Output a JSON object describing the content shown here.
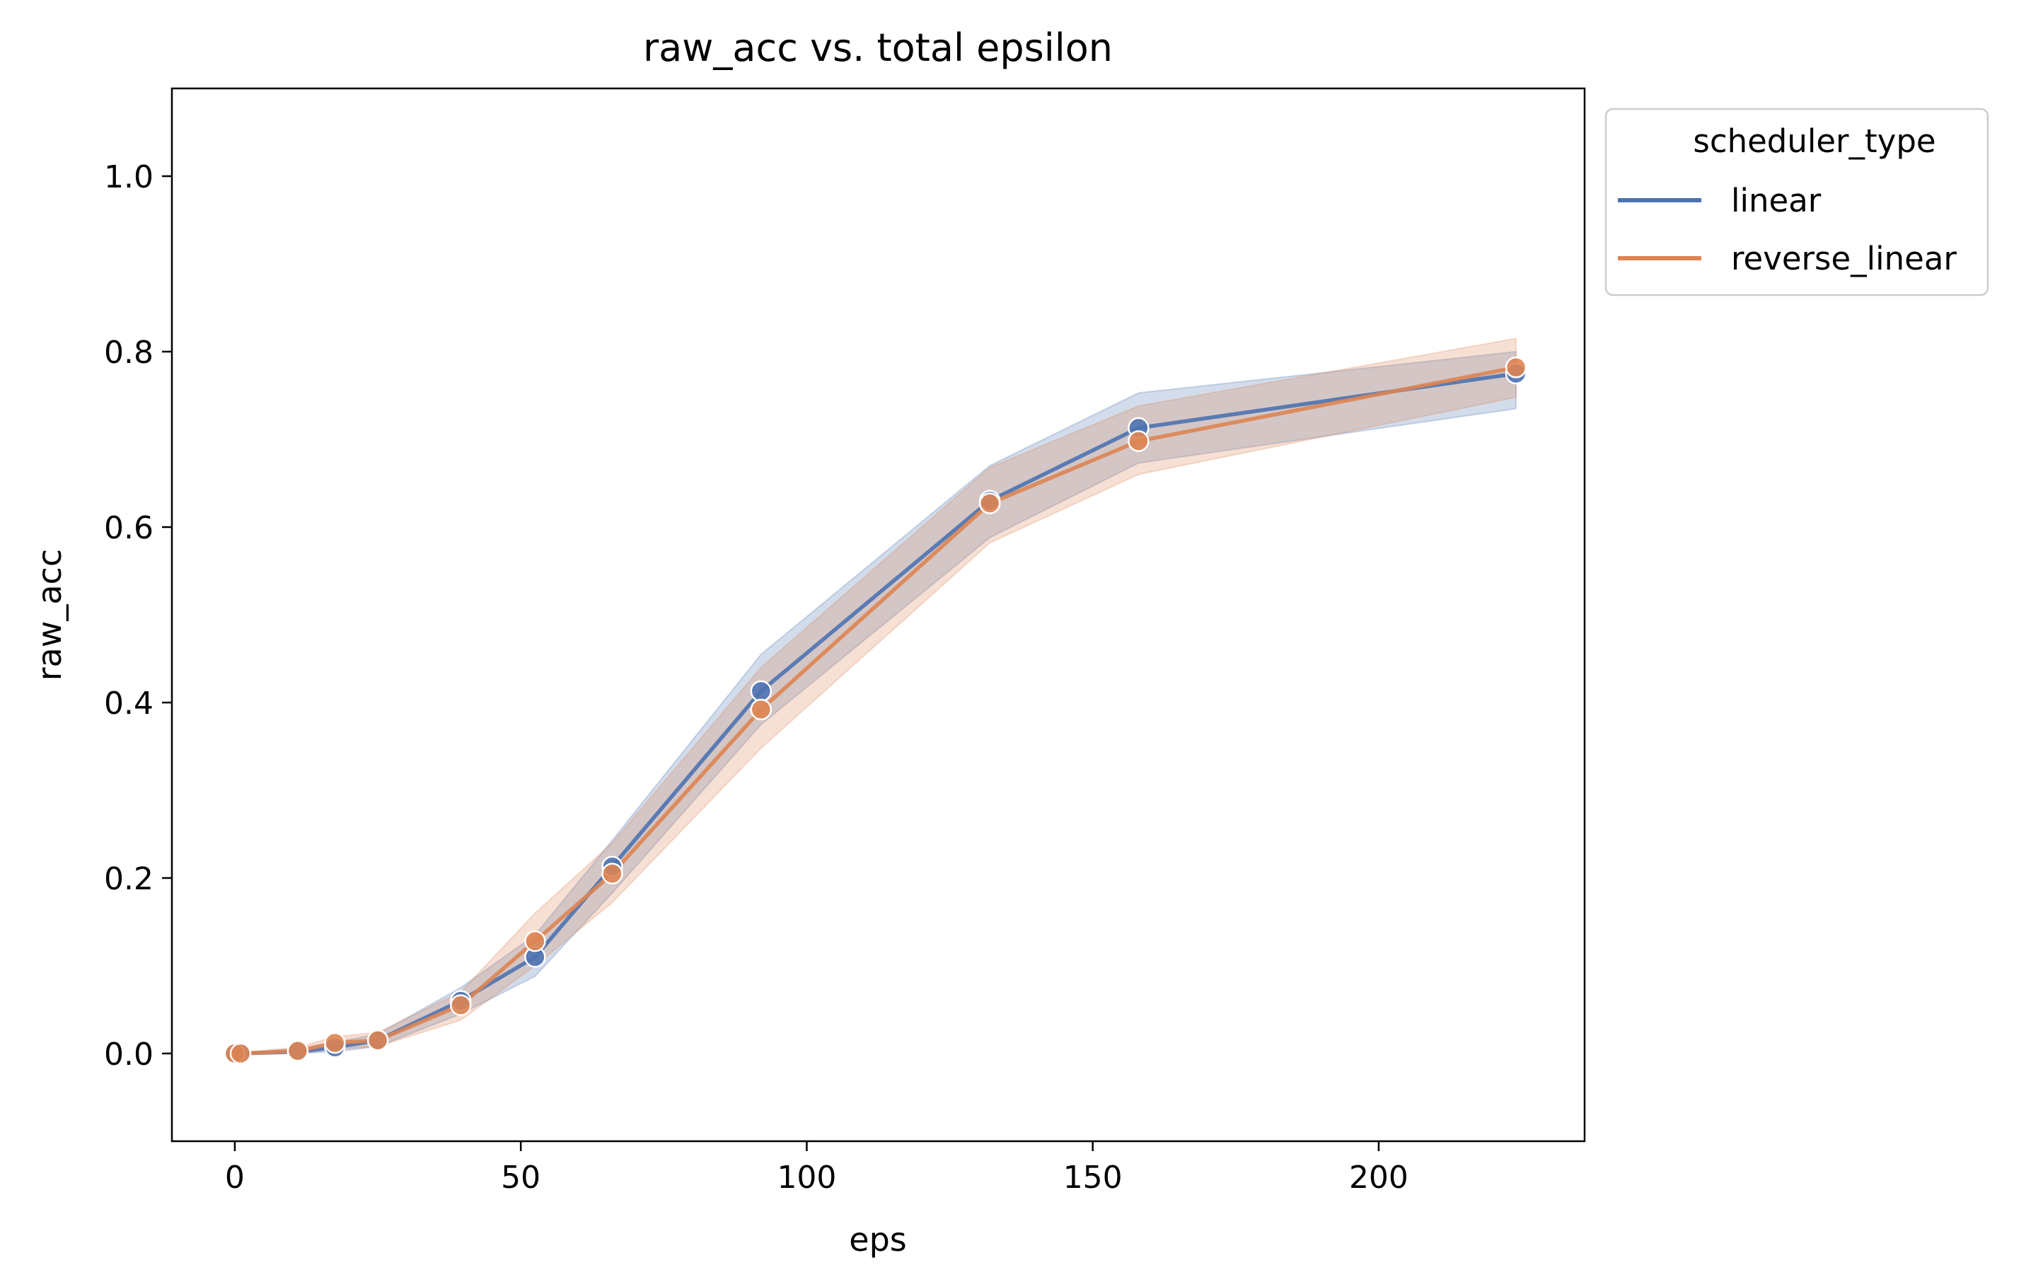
{
  "chart_data": {
    "type": "line",
    "title": "raw_acc vs. total epsilon",
    "xlabel": "eps",
    "ylabel": "raw_acc",
    "xlim": [
      -11,
      236
    ],
    "ylim": [
      -0.1,
      1.1
    ],
    "xticks": [
      {
        "value": 0,
        "label": "0"
      },
      {
        "value": 50,
        "label": "50"
      },
      {
        "value": 100,
        "label": "100"
      },
      {
        "value": 150,
        "label": "150"
      },
      {
        "value": 200,
        "label": "200"
      }
    ],
    "yticks": [
      {
        "value": 0.0,
        "label": "0.0"
      },
      {
        "value": 0.2,
        "label": "0.2"
      },
      {
        "value": 0.4,
        "label": "0.4"
      },
      {
        "value": 0.6,
        "label": "0.6"
      },
      {
        "value": 0.8,
        "label": "0.8"
      },
      {
        "value": 1.0,
        "label": "1.0"
      }
    ],
    "grid": false,
    "legend": {
      "title": "scheduler_type",
      "placement": "outside upper right"
    },
    "series": [
      {
        "name": "linear",
        "color": "#4c72b0",
        "x": [
          0,
          1,
          11,
          17.5,
          25,
          39.5,
          52.5,
          66,
          92,
          132,
          158,
          224
        ],
        "y": [
          0.0,
          0.0,
          0.002,
          0.007,
          0.015,
          0.06,
          0.11,
          0.213,
          0.413,
          0.63,
          0.713,
          0.775
        ],
        "ci_low": [
          0.0,
          0.0,
          0.0,
          0.002,
          0.008,
          0.045,
          0.088,
          0.183,
          0.375,
          0.588,
          0.673,
          0.735
        ],
        "ci_high": [
          0.0,
          0.001,
          0.005,
          0.013,
          0.022,
          0.075,
          0.135,
          0.243,
          0.455,
          0.67,
          0.753,
          0.8
        ]
      },
      {
        "name": "reverse_linear",
        "color": "#dd8452",
        "x": [
          0,
          1,
          11,
          17.5,
          25,
          39.5,
          52.5,
          66,
          92,
          132,
          158,
          224
        ],
        "y": [
          0.0,
          0.0,
          0.003,
          0.012,
          0.015,
          0.055,
          0.128,
          0.205,
          0.392,
          0.627,
          0.698,
          0.782
        ],
        "ci_low": [
          0.0,
          0.0,
          0.0,
          0.005,
          0.008,
          0.038,
          0.1,
          0.172,
          0.348,
          0.582,
          0.66,
          0.748
        ],
        "ci_high": [
          0.0,
          0.001,
          0.007,
          0.019,
          0.024,
          0.07,
          0.16,
          0.24,
          0.44,
          0.668,
          0.738,
          0.815
        ]
      }
    ]
  }
}
